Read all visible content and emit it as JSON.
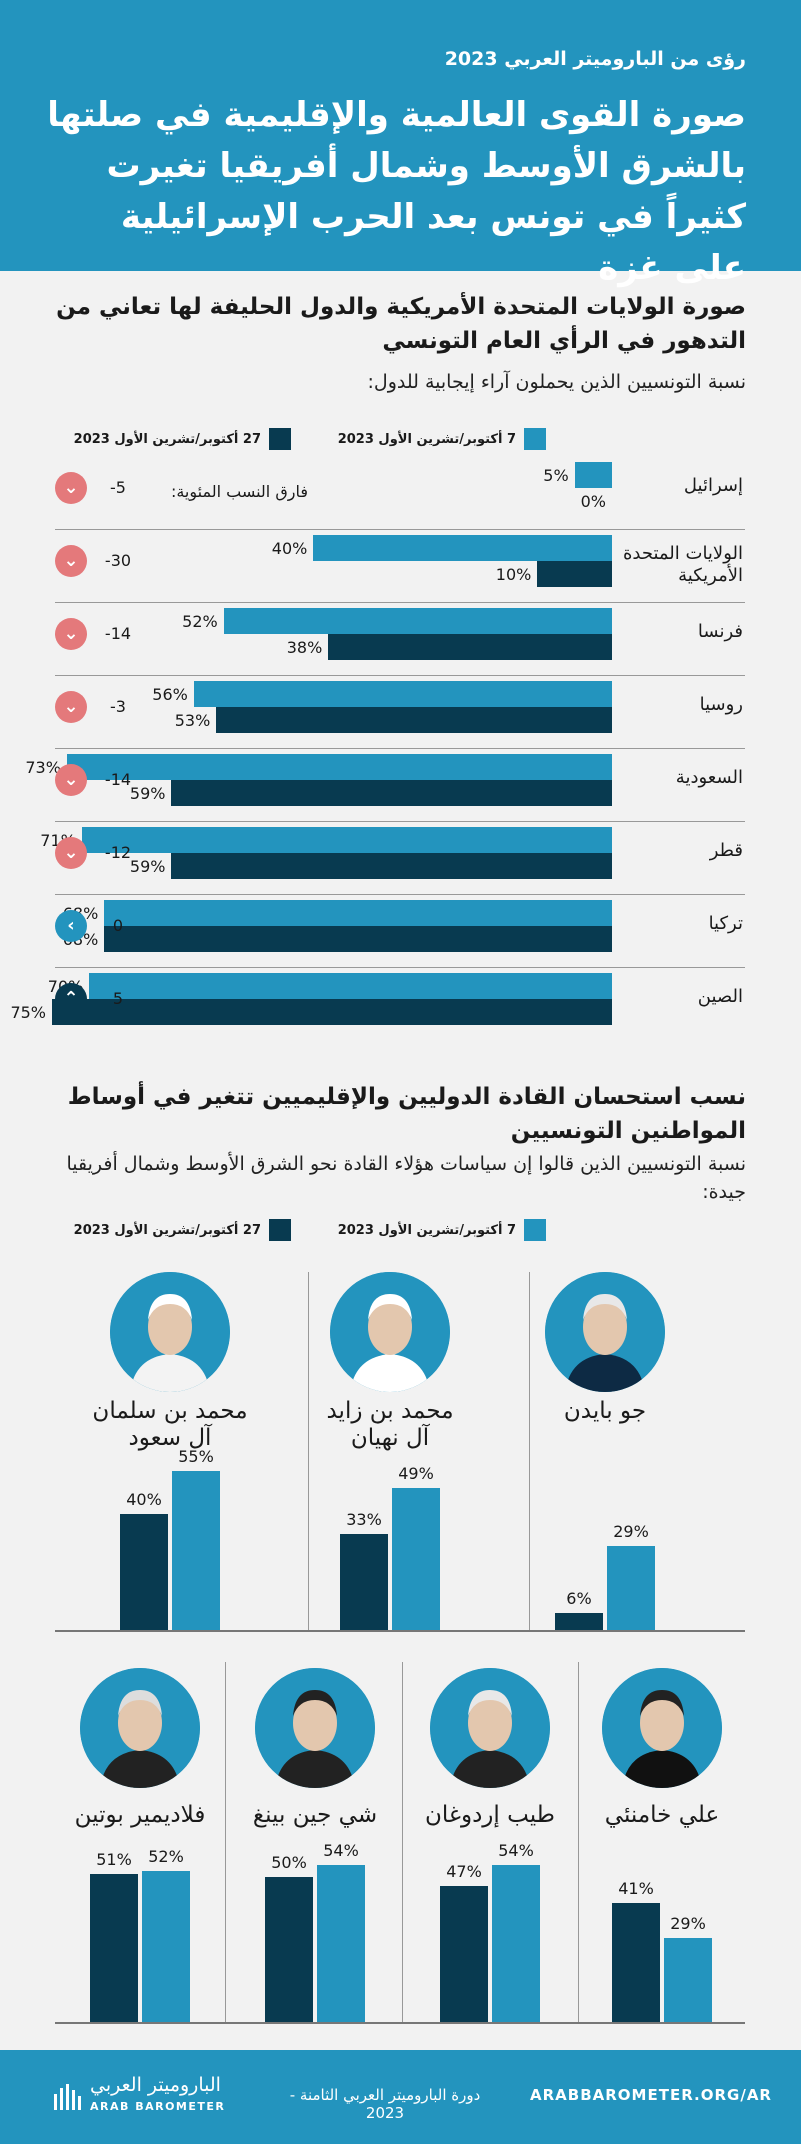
{
  "header": {
    "kicker": "رؤى من الباروميتر العربي 2023",
    "title": "صورة القوى العالمية والإقليمية في صلتها بالشرق الأوسط وشمال أفريقيا تغيرت كثيراً في تونس بعد الحرب الإسرائيلية على غزة"
  },
  "section1": {
    "title": "صورة الولايات المتحدة الأمريكية والدول الحليفة لها تعاني من التدهور في الرأي العام التونسي",
    "subtitle": "نسبة التونسيين الذين يحملون آراء إيجابية للدول:",
    "diff_label": "فارق النسب المئوية:"
  },
  "section2": {
    "title": "نسب استحسان القادة الدوليين والإقليميين تتغير في أوساط المواطنين التونسيين",
    "subtitle": "نسبة التونسيين الذين قالوا إن سياسات هؤلاء القادة نحو الشرق الأوسط وشمال أفريقيا جيدة:"
  },
  "legend": {
    "before": "7 أكتوبر/تشرين الأول 2023",
    "after": "27 أكتوبر/تشرين الأول 2023"
  },
  "colors": {
    "before": "#2394be",
    "after": "#083a50",
    "decrease": "#e4797b",
    "header": "#2394be"
  },
  "chart_data": [
    {
      "type": "bar",
      "categories": [
        "إسرائيل",
        "الولايات المتحدة الأمريكية",
        "فرنسا",
        "روسيا",
        "السعودية",
        "قطر",
        "تركيا",
        "الصين"
      ],
      "series": [
        {
          "name": "7 أكتوبر/تشرين الأول 2023",
          "values": [
            5,
            40,
            52,
            56,
            73,
            71,
            68,
            70
          ]
        },
        {
          "name": "27 أكتوبر/تشرين الأول 2023",
          "values": [
            0,
            10,
            38,
            53,
            59,
            59,
            68,
            75
          ]
        }
      ],
      "labels_before": [
        "5%",
        "40%",
        "52%",
        "56%",
        "73%",
        "71%",
        "68%",
        "70%"
      ],
      "labels_after": [
        "0%",
        "10%",
        "38%",
        "53%",
        "59%",
        "59%",
        "68%",
        "75%"
      ],
      "differences": [
        "-5",
        "-30",
        "-14",
        "-3",
        "-14",
        "-12",
        "0",
        "5"
      ],
      "difference_icons": [
        "chevron-down-icon",
        "chevron-down-icon",
        "chevron-down-icon",
        "chevron-down-icon",
        "chevron-down-icon",
        "chevron-down-icon",
        "chevron-left-icon",
        "chevron-up-icon"
      ],
      "xlim": [
        0,
        100
      ]
    },
    {
      "type": "bar",
      "categories": [
        "جو بايدن",
        "محمد بن زايد آل نهيان",
        "محمد بن سلمان آل سعود",
        "علي خامنئي",
        "طيب إردوغان",
        "شي جين بينغ",
        "فلاديمير بوتين"
      ],
      "series": [
        {
          "name": "7 أكتوبر/تشرين الأول 2023",
          "values": [
            29,
            49,
            55,
            29,
            54,
            54,
            52
          ]
        },
        {
          "name": "27 أكتوبر/تشرين الأول 2023",
          "values": [
            6,
            33,
            40,
            41,
            47,
            50,
            51
          ]
        }
      ],
      "labels_before": [
        "29%",
        "49%",
        "55%",
        "29%",
        "54%",
        "54%",
        "52%"
      ],
      "labels_after": [
        "6%",
        "33%",
        "40%",
        "41%",
        "47%",
        "50%",
        "51%"
      ],
      "ylim": [
        0,
        100
      ]
    }
  ],
  "leaders": [
    {
      "line1": "جو بايدن",
      "line2": ""
    },
    {
      "line1": "محمد بن زايد",
      "line2": "آل نهيان"
    },
    {
      "line1": "محمد بن سلمان",
      "line2": "آل سعود"
    },
    {
      "line1": "علي خامنئي",
      "line2": ""
    },
    {
      "line1": "طيب إردوغان",
      "line2": ""
    },
    {
      "line1": "شي جين بينغ",
      "line2": ""
    },
    {
      "line1": "فلاديمير بوتين",
      "line2": ""
    }
  ],
  "countries": [
    {
      "line1": "إسرائيل",
      "line2": ""
    },
    {
      "line1": "الولايات المتحدة",
      "line2": "الأمريكية"
    },
    {
      "line1": "فرنسا",
      "line2": ""
    },
    {
      "line1": "روسيا",
      "line2": ""
    },
    {
      "line1": "السعودية",
      "line2": ""
    },
    {
      "line1": "قطر",
      "line2": ""
    },
    {
      "line1": "تركيا",
      "line2": ""
    },
    {
      "line1": "الصين",
      "line2": ""
    }
  ],
  "footer": {
    "url": "ARABBAROMETER.ORG/AR",
    "edition": "دورة الباروميتر العربي الثامنة - 2023",
    "brand_ar": "الباروميتر العربي",
    "brand_en": "ARAB BAROMETER"
  }
}
